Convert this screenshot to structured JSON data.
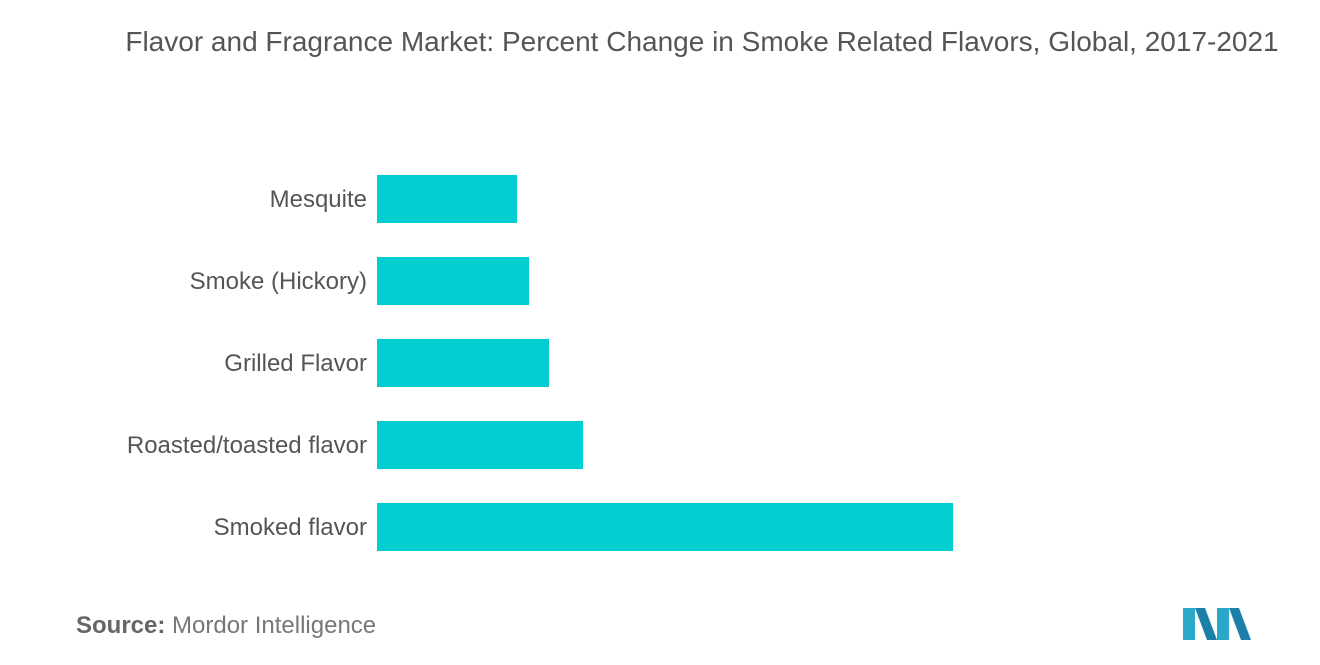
{
  "chart_data": {
    "type": "bar",
    "orientation": "horizontal",
    "title": "Flavor and Fragrance Market: Percent Change in Smoke Related Flavors, Global, 2017-2021",
    "categories": [
      "Mesquite",
      "Smoke (Hickory)",
      "Grilled Flavor",
      "Roasted/toasted flavor",
      "Smoked flavor"
    ],
    "values": [
      14,
      15.2,
      17.2,
      20.6,
      57.6
    ],
    "xlim": [
      0,
      60
    ],
    "bar_color": "#00CED1",
    "grid": false,
    "legend": "none"
  },
  "footer": {
    "source_label": "Source:",
    "source_text": "Mordor Intelligence"
  },
  "logo": {
    "icon": "mordor-intelligence-logo-icon",
    "color": "#2AA8C8"
  }
}
